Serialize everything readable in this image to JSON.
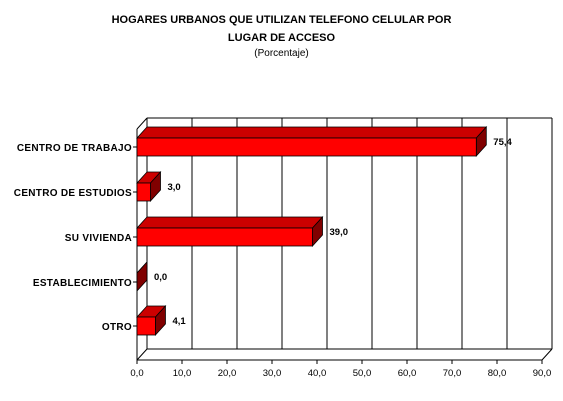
{
  "chart_data": {
    "type": "bar",
    "orientation": "horizontal",
    "title": "HOGARES URBANOS QUE UTILIZAN TELEFONO CELULAR POR",
    "title_line2": "LUGAR DE ACCESO",
    "subtitle": "(Porcentaje)",
    "categories": [
      "CENTRO DE TRABAJO",
      "CENTRO DE ESTUDIOS",
      "SU VIVIENDA",
      "ESTABLECIMIENTO",
      "OTRO"
    ],
    "values": [
      75.4,
      3.0,
      39.0,
      0.0,
      4.1
    ],
    "value_labels": [
      "75,4",
      "3,0",
      "39,0",
      "0,0",
      "4,1"
    ],
    "xlim": [
      0,
      90
    ],
    "xticks": [
      "0,0",
      "10,0",
      "20,0",
      "30,0",
      "40,0",
      "50,0",
      "60,0",
      "70,0",
      "80,0",
      "90,0"
    ],
    "grid": true,
    "legend": "none",
    "colors": {
      "bar_front": "#ff0000",
      "bar_top": "#cc0000",
      "bar_side": "#800000",
      "grid": "#000000"
    }
  }
}
